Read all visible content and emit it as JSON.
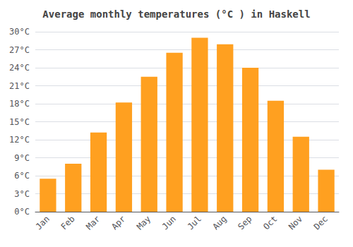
{
  "chart_data": {
    "type": "bar",
    "title": "Average monthly temperatures (°C ) in Haskell",
    "categories": [
      "Jan",
      "Feb",
      "Mar",
      "Apr",
      "May",
      "Jun",
      "Jul",
      "Aug",
      "Sep",
      "Oct",
      "Nov",
      "Dec"
    ],
    "values": [
      5.5,
      8.0,
      13.2,
      18.2,
      22.5,
      26.5,
      29.0,
      27.9,
      24.0,
      18.5,
      12.5,
      7.0
    ],
    "color": "#FFA020",
    "ylim": [
      0,
      30
    ],
    "yticks": [
      {
        "value": 0,
        "label": "0°C"
      },
      {
        "value": 3,
        "label": "3°C"
      },
      {
        "value": 6,
        "label": "6°C"
      },
      {
        "value": 9,
        "label": "9°C"
      },
      {
        "value": 12,
        "label": "12°C"
      },
      {
        "value": 15,
        "label": "15°C"
      },
      {
        "value": 18,
        "label": "18°C"
      },
      {
        "value": 21,
        "label": "21°C"
      },
      {
        "value": 24,
        "label": "24°C"
      },
      {
        "value": 27,
        "label": "27°C"
      },
      {
        "value": 30,
        "label": "30°C"
      }
    ],
    "grid": true
  }
}
